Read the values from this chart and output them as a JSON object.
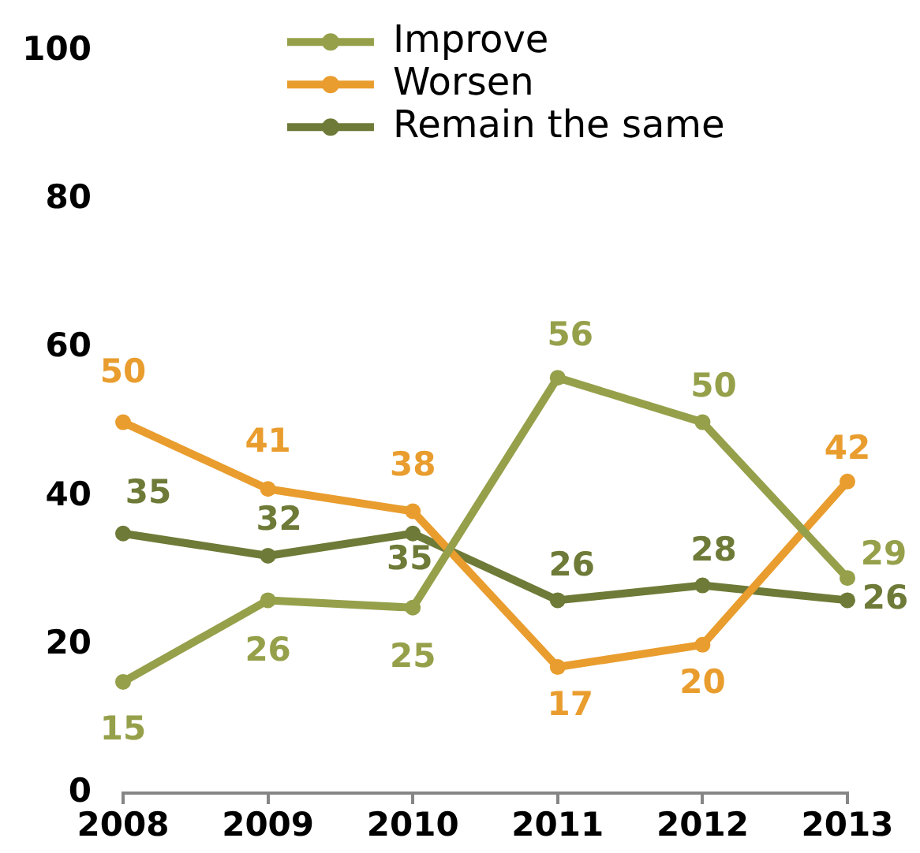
{
  "chart_data": {
    "type": "line",
    "categories": [
      "2008",
      "2009",
      "2010",
      "2011",
      "2012",
      "2013"
    ],
    "series": [
      {
        "name": "Improve",
        "color": "#96a04a",
        "values": [
          15,
          26,
          25,
          56,
          50,
          29
        ]
      },
      {
        "name": "Worsen",
        "color": "#e99d2e",
        "values": [
          50,
          41,
          38,
          17,
          20,
          42
        ]
      },
      {
        "name": "Remain the same",
        "color": "#6e7a37",
        "values": [
          35,
          32,
          35,
          26,
          28,
          26
        ]
      }
    ],
    "ylim": [
      0,
      100
    ],
    "yticks": [
      0,
      20,
      40,
      60,
      80,
      100
    ],
    "grid": false,
    "legend": "top",
    "marker": "circle",
    "line_style": "solid",
    "data_labels": true
  }
}
